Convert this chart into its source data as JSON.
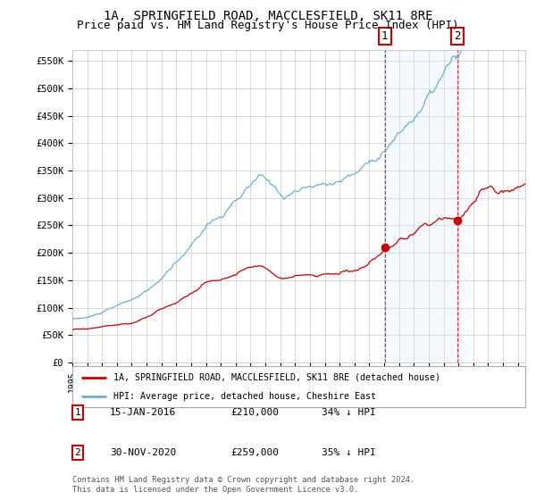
{
  "title": "1A, SPRINGFIELD ROAD, MACCLESFIELD, SK11 8RE",
  "subtitle": "Price paid vs. HM Land Registry's House Price Index (HPI)",
  "ylabel_ticks": [
    "£0",
    "£50K",
    "£100K",
    "£150K",
    "£200K",
    "£250K",
    "£300K",
    "£350K",
    "£400K",
    "£450K",
    "£500K",
    "£550K"
  ],
  "ytick_values": [
    0,
    50000,
    100000,
    150000,
    200000,
    250000,
    300000,
    350000,
    400000,
    450000,
    500000,
    550000
  ],
  "ylim": [
    0,
    570000
  ],
  "xlim_start": 1995.0,
  "xlim_end": 2025.5,
  "xtick_years": [
    1995,
    1996,
    1997,
    1998,
    1999,
    2000,
    2001,
    2002,
    2003,
    2004,
    2005,
    2006,
    2007,
    2008,
    2009,
    2010,
    2011,
    2012,
    2013,
    2014,
    2015,
    2016,
    2017,
    2018,
    2019,
    2020,
    2021,
    2022,
    2023,
    2024,
    2025
  ],
  "hpi_color": "#6baed6",
  "hpi_fill_color": "#d6e8f5",
  "price_color": "#cc0000",
  "marker1_date": 2016.04,
  "marker1_price": 210000,
  "marker1_label": "15-JAN-2016",
  "marker1_value": "£210,000",
  "marker1_pct": "34% ↓ HPI",
  "marker2_date": 2020.92,
  "marker2_price": 259000,
  "marker2_label": "30-NOV-2020",
  "marker2_value": "£259,000",
  "marker2_pct": "35% ↓ HPI",
  "legend1": "1A, SPRINGFIELD ROAD, MACCLESFIELD, SK11 8RE (detached house)",
  "legend2": "HPI: Average price, detached house, Cheshire East",
  "footnote": "Contains HM Land Registry data © Crown copyright and database right 2024.\nThis data is licensed under the Open Government Licence v3.0.",
  "background_color": "#ffffff",
  "grid_color": "#cccccc",
  "title_fontsize": 10,
  "subtitle_fontsize": 9
}
